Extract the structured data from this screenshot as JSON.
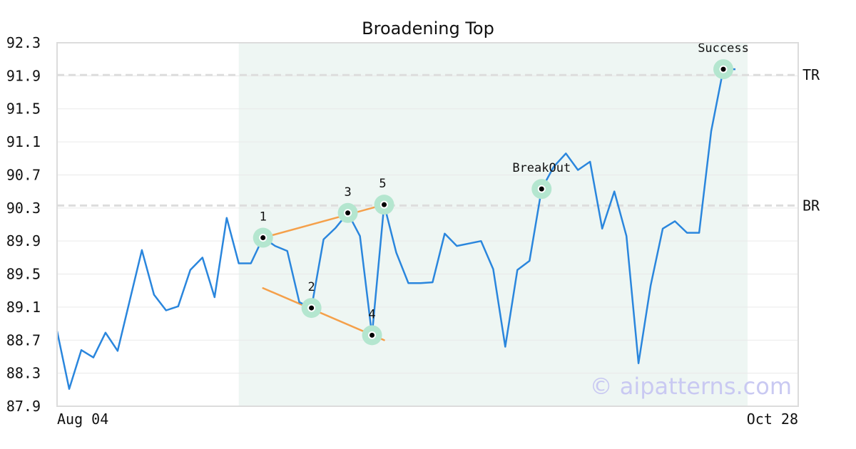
{
  "chart_data": {
    "type": "line",
    "title": "Broadening Top",
    "xlabel": "",
    "ylabel": "",
    "x_tick_labels": [
      "Aug 04",
      "Oct 28"
    ],
    "y_ticks": [
      87.9,
      88.3,
      88.7,
      89.1,
      89.5,
      89.9,
      90.3,
      90.7,
      91.1,
      91.5,
      91.9,
      92.3
    ],
    "ylim": [
      87.9,
      92.3
    ],
    "grid": true,
    "series": [
      {
        "values": [
          88.81,
          88.11,
          88.58,
          88.49,
          88.79,
          88.57,
          89.18,
          89.79,
          89.25,
          89.06,
          89.11,
          89.55,
          89.7,
          89.22,
          90.18,
          89.63,
          89.63,
          89.94,
          89.84,
          89.78,
          89.16,
          89.09,
          89.92,
          90.06,
          90.24,
          89.96,
          88.76,
          90.34,
          89.76,
          89.39,
          89.39,
          89.4,
          89.99,
          89.84,
          89.87,
          89.9,
          89.56,
          88.62,
          89.55,
          89.66,
          90.53,
          90.8,
          90.96,
          90.76,
          90.86,
          90.05,
          90.5,
          89.96,
          88.42,
          89.36,
          90.05,
          90.14,
          90.0,
          90.0,
          91.23,
          91.98,
          91.98
        ]
      }
    ],
    "pattern_zone": {
      "start_index": 15,
      "end_index": 57
    },
    "levels": [
      {
        "label": "TR",
        "value": 91.91
      },
      {
        "label": "BR",
        "value": 90.33
      }
    ],
    "pattern_points": [
      {
        "label": "1",
        "index": 17,
        "value": 89.94
      },
      {
        "label": "2",
        "index": 21,
        "value": 89.09
      },
      {
        "label": "3",
        "index": 24,
        "value": 90.24
      },
      {
        "label": "4",
        "index": 26,
        "value": 88.76
      },
      {
        "label": "5",
        "index": 27,
        "value": 90.34
      },
      {
        "label": "BreakOut",
        "index": 40,
        "value": 90.53
      },
      {
        "label": "Success",
        "index": 55,
        "value": 91.98
      }
    ],
    "trendlines": [
      {
        "from": {
          "index": 17,
          "value": 89.94
        },
        "to": {
          "index": 27,
          "value": 90.34
        }
      },
      {
        "from": {
          "index": 17,
          "value": 89.33
        },
        "to": {
          "index": 27,
          "value": 88.7
        }
      }
    ],
    "colors": {
      "line": "#2a86dd",
      "trendline": "#f5a04a",
      "zone": "#eef6f3",
      "marker_halo": "#b4e6cf",
      "level_line": "#dddddd",
      "grid": "#e9e9e9"
    }
  },
  "watermark": "© aipatterns.com"
}
